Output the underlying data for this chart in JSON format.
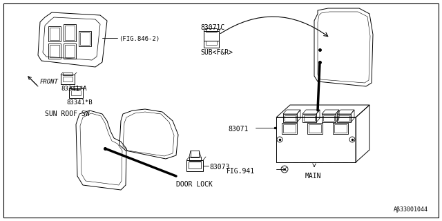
{
  "bg_color": "#ffffff",
  "line_color": "#000000",
  "text_color": "#000000",
  "labels": {
    "fig846": "(FIG.846-2)",
    "83071C": "83071C",
    "subFR": "SUB<F&R>",
    "83341A": "83341*A",
    "83341B": "83341*B",
    "sun_roof": "SUN ROOF SW",
    "83073": "83073",
    "door_lock": "DOOR LOCK",
    "83071": "83071",
    "fig941": "FIG.941",
    "main": "MAIN",
    "front": "FRONT"
  },
  "watermark": "Aβ33001044",
  "font_size": 7.0,
  "font_size_sm": 6.0
}
